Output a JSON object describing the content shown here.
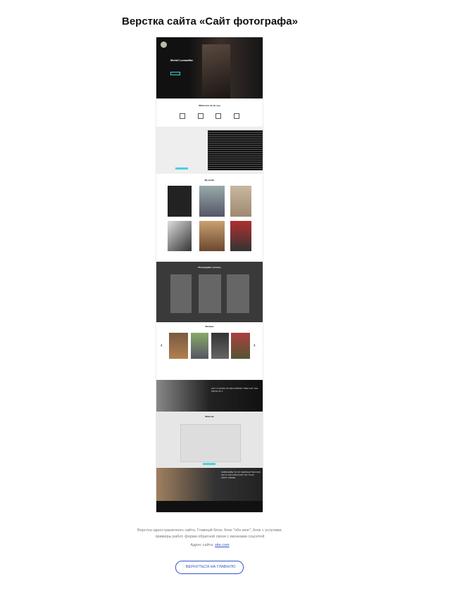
{
  "header": {
    "title": "Верстка сайта «Сайт фотографа»"
  },
  "mockup": {
    "hero_name": "Mehdi Lumaaffar",
    "services_title": "What can I do for you",
    "works_title": "My works",
    "pricing_title": "Photographic services",
    "reviews_title": "Reviews",
    "promo": "GET 2 HOURS OF RECORDING TIME FOR THE PRICE OF 1",
    "contact_title": "Write me",
    "subscribe": "SUBSCRIBE TO MY NEWSLETTER AND GET A 15% DISCOUNT ON YOUR FIRST ORDER"
  },
  "description": {
    "lines": [
      "Верстка одностраничного сайта. Главный блок, блок \"обо мне\", блок с услугами,",
      "примеры работ, форма обратной связи с иконками соцсетей"
    ],
    "address_label": "Адрес сайта:",
    "address_link": "site.com"
  },
  "button": {
    "label": "ВЕРНУТЬСЯ НА ГЛАВНУЮ"
  }
}
